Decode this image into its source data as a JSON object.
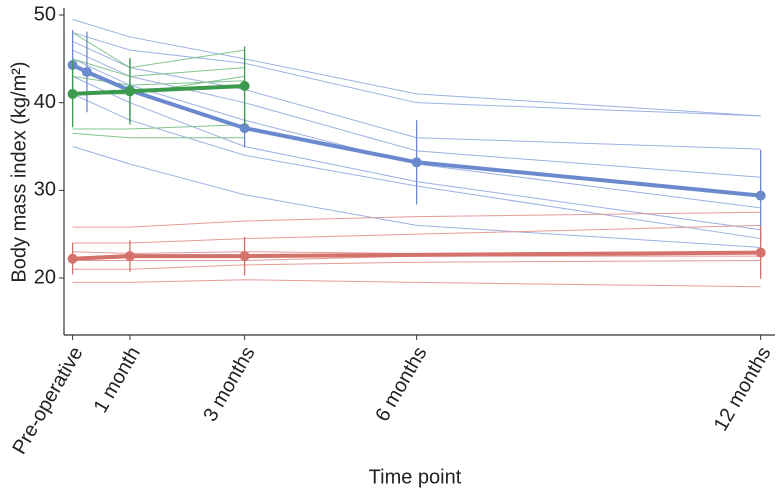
{
  "chart_data": {
    "type": "line",
    "xlabel": "Time point",
    "ylabel": "Body mass index (kg/m²)",
    "xlim": [
      -0.15,
      12.25
    ],
    "ylim": [
      13.5,
      50.8
    ],
    "xticks": [
      {
        "value": 0,
        "label": "Pre-operative"
      },
      {
        "value": 1,
        "label": "1 month"
      },
      {
        "value": 3,
        "label": "3 months"
      },
      {
        "value": 6,
        "label": "6 months"
      },
      {
        "value": 12,
        "label": "12 months"
      }
    ],
    "yticks": [
      20,
      30,
      40,
      50
    ],
    "individual_series": [
      {
        "color": "#9db0e2",
        "x": [
          0,
          1,
          3,
          6,
          12
        ],
        "values": [
          49.5,
          47.5,
          45,
          41,
          38.5
        ]
      },
      {
        "color": "#9db0e2",
        "x": [
          0,
          1,
          3,
          6,
          12
        ],
        "values": [
          48,
          46,
          44.5,
          40,
          38.5
        ]
      },
      {
        "color": "#9db0e2",
        "x": [
          0,
          1,
          3,
          6,
          12
        ],
        "values": [
          47,
          44,
          41.5,
          36,
          34.7
        ]
      },
      {
        "color": "#9db0e2",
        "x": [
          0,
          1,
          3,
          6,
          12
        ],
        "values": [
          46,
          43,
          40,
          34.5,
          31.5
        ]
      },
      {
        "color": "#9db0e2",
        "x": [
          0,
          1,
          3,
          6,
          12
        ],
        "values": [
          45,
          42,
          38,
          33,
          28
        ]
      },
      {
        "color": "#9db0e2",
        "x": [
          0,
          1,
          3,
          6,
          12
        ],
        "values": [
          43,
          40,
          35,
          31,
          25.5
        ]
      },
      {
        "color": "#9db0e2",
        "x": [
          0,
          1,
          3,
          6,
          12
        ],
        "values": [
          41,
          38,
          34,
          30.5,
          24.5
        ]
      },
      {
        "color": "#9db0e2",
        "x": [
          0,
          1,
          3,
          6,
          12
        ],
        "values": [
          35,
          33,
          29.5,
          26,
          23.5
        ]
      },
      {
        "color": "#80c48d",
        "x": [
          0,
          1,
          3
        ],
        "values": [
          48,
          44,
          46
        ]
      },
      {
        "color": "#80c48d",
        "x": [
          0,
          1,
          3
        ],
        "values": [
          45,
          43,
          44
        ]
      },
      {
        "color": "#80c48d",
        "x": [
          0,
          1,
          3
        ],
        "values": [
          43,
          42,
          42.5
        ]
      },
      {
        "color": "#80c48d",
        "x": [
          0,
          1,
          3
        ],
        "values": [
          41,
          41,
          43
        ]
      },
      {
        "color": "#80c48d",
        "x": [
          0,
          1,
          3
        ],
        "values": [
          37,
          37,
          37.5
        ]
      },
      {
        "color": "#80c48d",
        "x": [
          0,
          1,
          3
        ],
        "values": [
          36.5,
          36,
          36
        ]
      },
      {
        "color": "#e39c98",
        "x": [
          0,
          1,
          3,
          6,
          12
        ],
        "values": [
          25.8,
          25.8,
          26.5,
          27,
          27.5
        ]
      },
      {
        "color": "#e39c98",
        "x": [
          0,
          1,
          3,
          6,
          12
        ],
        "values": [
          24,
          24,
          24.5,
          25,
          26
        ]
      },
      {
        "color": "#e39c98",
        "x": [
          0,
          1,
          3,
          6,
          12
        ],
        "values": [
          23,
          22.8,
          23,
          22.8,
          23
        ]
      },
      {
        "color": "#e39c98",
        "x": [
          0,
          1,
          3,
          6,
          12
        ],
        "values": [
          22,
          22,
          22,
          22.5,
          22.5
        ]
      },
      {
        "color": "#e39c98",
        "x": [
          0,
          1,
          3,
          6,
          12
        ],
        "values": [
          21,
          21,
          21.5,
          21.8,
          22
        ]
      },
      {
        "color": "#e39c98",
        "x": [
          0,
          1,
          3,
          6,
          12
        ],
        "values": [
          19.5,
          19.5,
          19.8,
          19.5,
          19
        ]
      }
    ],
    "series": [
      {
        "color": "#6b8acd",
        "x": [
          0,
          0.25,
          1,
          3,
          6,
          12
        ],
        "values": [
          44.3,
          43.5,
          41.4,
          37.1,
          33.2,
          29.4
        ],
        "errors": [
          4,
          4.6,
          3.5,
          2.2,
          4.8,
          5.2
        ]
      },
      {
        "color": "#3b9a4b",
        "x": [
          0,
          1,
          3
        ],
        "values": [
          41.0,
          41.3,
          41.9
        ],
        "errors": [
          3.8,
          3.8,
          4.5
        ]
      },
      {
        "color": "#d4716b",
        "x": [
          0,
          1,
          3,
          12
        ],
        "values": [
          22.2,
          22.5,
          22.5,
          22.9
        ],
        "errors": [
          1.8,
          1.8,
          2.2,
          3.0
        ]
      }
    ]
  }
}
